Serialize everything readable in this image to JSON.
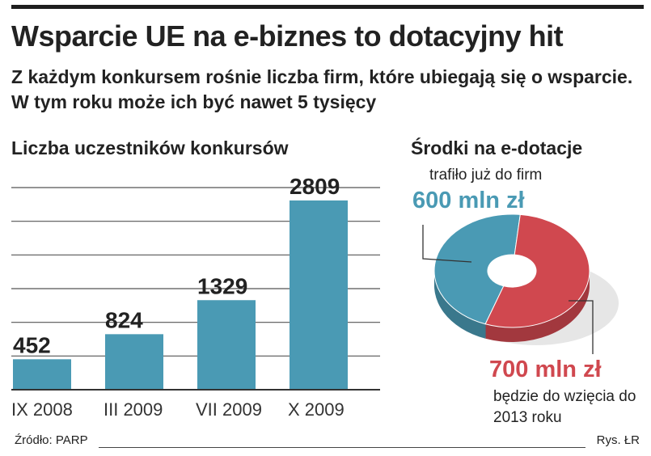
{
  "header": {
    "title": "Wsparcie UE na e-biznes to dotacyjny hit",
    "subtitle": "Z każdym konkursem rośnie liczba firm, które ubiegają się o wsparcie. W tym roku może ich być nawet 5 tysięcy"
  },
  "colors": {
    "bar": "#4a9ab4",
    "pie_blue": "#4a9ab4",
    "pie_red": "#d0484f",
    "grid": "#555555"
  },
  "chart_data": [
    {
      "type": "bar",
      "title": "Liczba uczestników konkursów",
      "categories": [
        "IX 2008",
        "III 2009",
        "VII 2009",
        "X 2009"
      ],
      "values": [
        452,
        824,
        1329,
        2809
      ],
      "value_labels": [
        "452",
        "824",
        "1329",
        "2809"
      ],
      "ylim": [
        0,
        3000
      ],
      "grid": true
    },
    {
      "type": "pie",
      "title": "Środki na e-dotacje",
      "slices": [
        {
          "value": 600,
          "label": "600 mln zł",
          "note": "trafiło już do firm",
          "color": "#4a9ab4"
        },
        {
          "value": 700,
          "label": "700 mln zł",
          "note": "będzie do wzięcia do 2013 roku",
          "color": "#d0484f"
        }
      ],
      "unit": "mln zł"
    }
  ],
  "footer": {
    "source": "Źródło: PARP",
    "credit": "Rys. ŁR"
  }
}
